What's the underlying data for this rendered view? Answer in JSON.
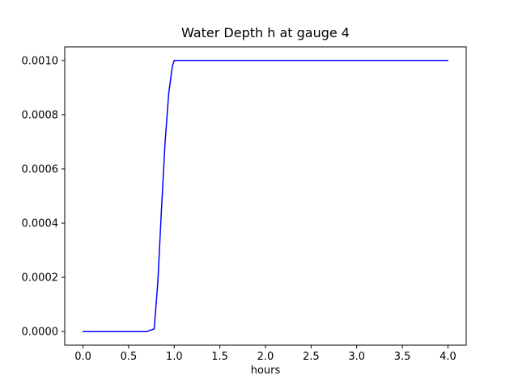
{
  "chart_data": {
    "type": "line",
    "title": "Water Depth h at gauge 4",
    "xlabel": "hours",
    "ylabel": "",
    "line_color": "#0000ff",
    "line_width": 1.5,
    "grid": false,
    "legend": "none",
    "xlim": [
      -0.2,
      4.2
    ],
    "ylim": [
      -5e-05,
      0.00105
    ],
    "xticks": [
      0.0,
      0.5,
      1.0,
      1.5,
      2.0,
      2.5,
      3.0,
      3.5,
      4.0
    ],
    "xtick_labels": [
      "0.0",
      "0.5",
      "1.0",
      "1.5",
      "2.0",
      "2.5",
      "3.0",
      "3.5",
      "4.0"
    ],
    "yticks": [
      0.0,
      0.0002,
      0.0004,
      0.0006,
      0.0008,
      0.001
    ],
    "ytick_labels": [
      "0.0000",
      "0.0002",
      "0.0004",
      "0.0006",
      "0.0008",
      "0.0010"
    ],
    "x": [
      0.0,
      0.7,
      0.78,
      0.82,
      0.86,
      0.9,
      0.94,
      0.98,
      1.0,
      1.05,
      2.0,
      3.0,
      4.0
    ],
    "y": [
      0.0,
      0.0,
      1e-05,
      0.00018,
      0.00045,
      0.0007,
      0.00088,
      0.00098,
      0.001,
      0.001,
      0.001,
      0.001,
      0.001
    ]
  }
}
